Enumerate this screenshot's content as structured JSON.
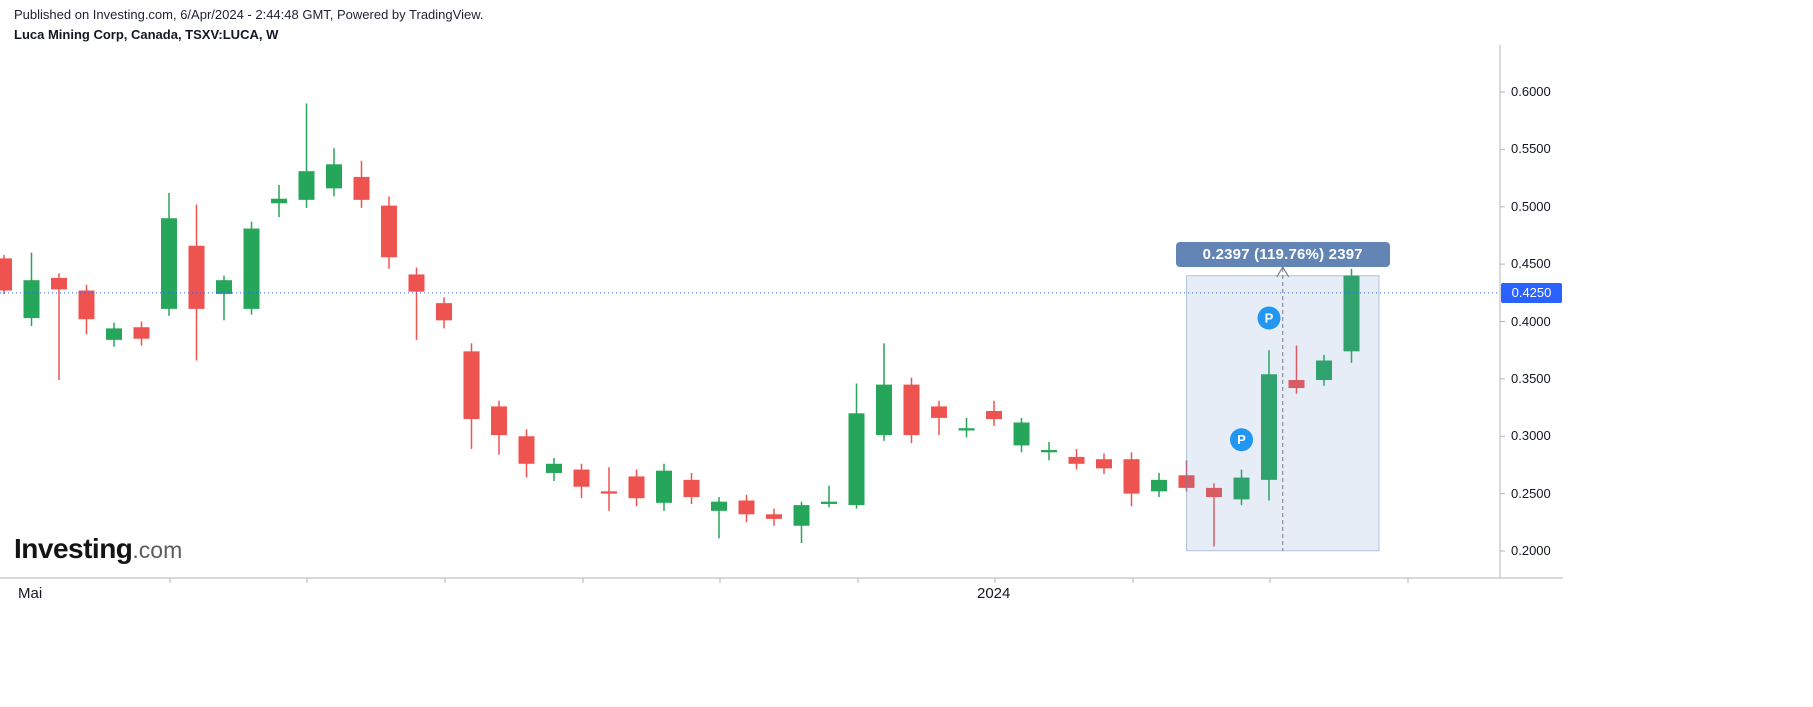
{
  "meta": {
    "published_line": "Published on Investing.com, 6/Apr/2024 - 2:44:48 GMT, Powered by TradingView.",
    "symbol_line": "Luca Mining Corp, Canada, TSXV:LUCA, W"
  },
  "logo": {
    "primary": "Investing",
    "suffix": ".com"
  },
  "chart_data": {
    "type": "candlestick",
    "symbol": "TSXV:LUCA",
    "timeframe": "W",
    "title": "Luca Mining Corp, Canada, TSXV:LUCA, W",
    "y_axis": {
      "min": 0.2,
      "max": 0.6,
      "ticks": [
        {
          "label": "0.6000",
          "value": 0.6
        },
        {
          "label": "0.5500",
          "value": 0.55
        },
        {
          "label": "0.5000",
          "value": 0.5
        },
        {
          "label": "0.4500",
          "value": 0.45
        },
        {
          "label": "0.4000",
          "value": 0.4
        },
        {
          "label": "0.3500",
          "value": 0.35
        },
        {
          "label": "0.3000",
          "value": 0.3
        },
        {
          "label": "0.2500",
          "value": 0.25
        },
        {
          "label": "0.2000",
          "value": 0.2
        }
      ]
    },
    "x_axis": {
      "labels": [
        "Mai",
        "2024"
      ]
    },
    "price_line": {
      "value": 0.425,
      "label": "0.4250",
      "color": "#2962ff"
    },
    "candles": [
      [
        0.455,
        0.458,
        0.424,
        0.427
      ],
      [
        0.403,
        0.46,
        0.396,
        0.436
      ],
      [
        0.438,
        0.442,
        0.349,
        0.428
      ],
      [
        0.427,
        0.432,
        0.389,
        0.402
      ],
      [
        0.384,
        0.399,
        0.378,
        0.394
      ],
      [
        0.395,
        0.4,
        0.379,
        0.385
      ],
      [
        0.411,
        0.512,
        0.405,
        0.49
      ],
      [
        0.466,
        0.502,
        0.366,
        0.411
      ],
      [
        0.424,
        0.44,
        0.401,
        0.436
      ],
      [
        0.411,
        0.487,
        0.406,
        0.481
      ],
      [
        0.503,
        0.519,
        0.491,
        0.507
      ],
      [
        0.506,
        0.59,
        0.499,
        0.531
      ],
      [
        0.516,
        0.551,
        0.509,
        0.537
      ],
      [
        0.526,
        0.54,
        0.499,
        0.506
      ],
      [
        0.501,
        0.509,
        0.446,
        0.456
      ],
      [
        0.441,
        0.447,
        0.384,
        0.426
      ],
      [
        0.416,
        0.421,
        0.394,
        0.401
      ],
      [
        0.374,
        0.381,
        0.289,
        0.315
      ],
      [
        0.326,
        0.331,
        0.284,
        0.301
      ],
      [
        0.3,
        0.306,
        0.264,
        0.276
      ],
      [
        0.268,
        0.281,
        0.261,
        0.276
      ],
      [
        0.271,
        0.276,
        0.246,
        0.256
      ],
      [
        0.252,
        0.273,
        0.235,
        0.25
      ],
      [
        0.265,
        0.271,
        0.239,
        0.246
      ],
      [
        0.242,
        0.276,
        0.235,
        0.27
      ],
      [
        0.262,
        0.268,
        0.241,
        0.247
      ],
      [
        0.235,
        0.247,
        0.211,
        0.243
      ],
      [
        0.244,
        0.249,
        0.225,
        0.232
      ],
      [
        0.232,
        0.237,
        0.222,
        0.228
      ],
      [
        0.222,
        0.243,
        0.207,
        0.24
      ],
      [
        0.241,
        0.257,
        0.238,
        0.243
      ],
      [
        0.24,
        0.346,
        0.237,
        0.32
      ],
      [
        0.301,
        0.381,
        0.296,
        0.345
      ],
      [
        0.345,
        0.351,
        0.294,
        0.301
      ],
      [
        0.326,
        0.331,
        0.301,
        0.316
      ],
      [
        0.305,
        0.316,
        0.299,
        0.307
      ],
      [
        0.322,
        0.331,
        0.309,
        0.315
      ],
      [
        0.292,
        0.316,
        0.286,
        0.312
      ],
      [
        0.286,
        0.295,
        0.279,
        0.288
      ],
      [
        0.282,
        0.289,
        0.271,
        0.276
      ],
      [
        0.28,
        0.285,
        0.267,
        0.272
      ],
      [
        0.28,
        0.286,
        0.239,
        0.25
      ],
      [
        0.252,
        0.268,
        0.247,
        0.262
      ],
      [
        0.266,
        0.279,
        0.252,
        0.255
      ],
      [
        0.255,
        0.259,
        0.204,
        0.247
      ],
      [
        0.245,
        0.271,
        0.24,
        0.264
      ],
      [
        0.262,
        0.375,
        0.244,
        0.354
      ],
      [
        0.349,
        0.379,
        0.337,
        0.342
      ],
      [
        0.349,
        0.371,
        0.344,
        0.366
      ],
      [
        0.374,
        0.446,
        0.364,
        0.44
      ]
    ],
    "markers": [
      {
        "symbol": "P",
        "index": 45,
        "price": 0.297
      },
      {
        "symbol": "P",
        "index": 46,
        "price": 0.403
      }
    ],
    "measurement": {
      "label": "0.2397 (119.76%) 2397",
      "from_price": 0.2002,
      "to_price": 0.4399,
      "change": 0.2397,
      "change_pct": "119.76%",
      "start_index": 43,
      "end_index": 50
    },
    "colors": {
      "up": "#26a65b",
      "down": "#ef5350",
      "price_label_bg": "#2962ff",
      "marker": "#2196f3",
      "measurement_badge": "#6285b6",
      "measurement_fill": "rgba(98,144,204,0.16)",
      "measurement_border": "rgba(98,134,182,0.45)",
      "axis_line": "#b2b5be"
    }
  }
}
